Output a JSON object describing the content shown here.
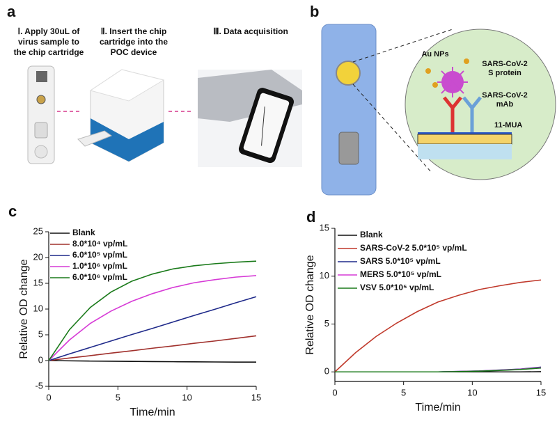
{
  "panels": {
    "a": {
      "label": "a",
      "steps": [
        [
          "Ⅰ. Apply 30uL of",
          "virus sample to",
          "the chip cartridge"
        ],
        [
          "Ⅱ. Insert the chip",
          "cartridge into the",
          "POC device"
        ],
        [
          "Ⅲ. Data acquisition"
        ]
      ]
    },
    "b": {
      "label": "b",
      "annotations": [
        [
          "Au NPs"
        ],
        [
          "SARS-CoV-2",
          "S protein"
        ],
        [
          "SARS-CoV-2",
          "mAb"
        ],
        [
          "11-MUA"
        ]
      ]
    }
  },
  "chart_data": [
    {
      "type": "line",
      "panel_label": "c",
      "xlabel": "Time/min",
      "ylabel": "Relative OD change",
      "x": [
        0,
        1.5,
        3,
        4.5,
        6,
        7.5,
        9,
        10.5,
        12,
        13.5,
        15
      ],
      "xlim": [
        0,
        15
      ],
      "xticks": [
        0,
        5,
        10,
        15
      ],
      "ylim": [
        -5,
        25
      ],
      "yticks": [
        -5,
        0,
        5,
        10,
        15,
        20,
        25
      ],
      "series": [
        {
          "name": "Blank",
          "color": "#111111",
          "values": [
            0,
            -0.05,
            -0.1,
            -0.13,
            -0.16,
            -0.19,
            -0.22,
            -0.25,
            -0.27,
            -0.29,
            -0.3
          ]
        },
        {
          "name": "8.0*10⁴ vp/mL",
          "color": "#a0302c",
          "values": [
            0,
            0.5,
            0.95,
            1.45,
            1.9,
            2.4,
            2.85,
            3.35,
            3.8,
            4.3,
            4.8
          ]
        },
        {
          "name": "6.0*10⁵ vp/mL",
          "color": "#1f2a8a",
          "values": [
            0,
            1.3,
            2.55,
            3.8,
            5.05,
            6.25,
            7.5,
            8.75,
            9.95,
            11.2,
            12.4
          ]
        },
        {
          "name": "1.0*10⁶ vp/mL",
          "color": "#d63ad6",
          "values": [
            0,
            4.0,
            7.2,
            9.6,
            11.5,
            13.0,
            14.2,
            15.1,
            15.7,
            16.2,
            16.5
          ]
        },
        {
          "name": "6.0*10⁶ vp/mL",
          "color": "#1a7a1a",
          "values": [
            0,
            6.0,
            10.3,
            13.3,
            15.4,
            16.8,
            17.8,
            18.4,
            18.8,
            19.1,
            19.3
          ]
        }
      ]
    },
    {
      "type": "line",
      "panel_label": "d",
      "xlabel": "Time/min",
      "ylabel": "Relative OD change",
      "x": [
        0,
        1.5,
        3,
        4.5,
        6,
        7.5,
        9,
        10.5,
        12,
        13.5,
        15
      ],
      "xlim": [
        0,
        15
      ],
      "xticks": [
        0,
        5,
        10,
        15
      ],
      "ylim": [
        -1,
        15
      ],
      "yticks": [
        0,
        5,
        10,
        15
      ],
      "series": [
        {
          "name": "Blank",
          "color": "#111111",
          "values": [
            0,
            0,
            0,
            0,
            0,
            0,
            0,
            0,
            0,
            0,
            0.02
          ]
        },
        {
          "name": "SARS-CoV-2 5.0*10⁵ vp/mL",
          "color": "#c0392b",
          "values": [
            0,
            2.0,
            3.7,
            5.1,
            6.3,
            7.3,
            8.0,
            8.6,
            9.0,
            9.35,
            9.6
          ]
        },
        {
          "name": "SARS 5.0*10⁵ vp/mL",
          "color": "#1f2a8a",
          "values": [
            0,
            0,
            0,
            0,
            0,
            0,
            0.05,
            0.1,
            0.2,
            0.3,
            0.5
          ]
        },
        {
          "name": "MERS 5.0*10⁵ vp/mL",
          "color": "#d63ad6",
          "values": [
            0,
            0,
            0,
            0,
            0,
            0,
            0.04,
            0.09,
            0.18,
            0.28,
            0.45
          ]
        },
        {
          "name": "VSV 5.0*10⁵ vp/mL",
          "color": "#1a7a1a",
          "values": [
            0,
            0,
            0,
            0,
            0,
            0,
            0.03,
            0.08,
            0.15,
            0.25,
            0.4
          ]
        }
      ]
    }
  ]
}
